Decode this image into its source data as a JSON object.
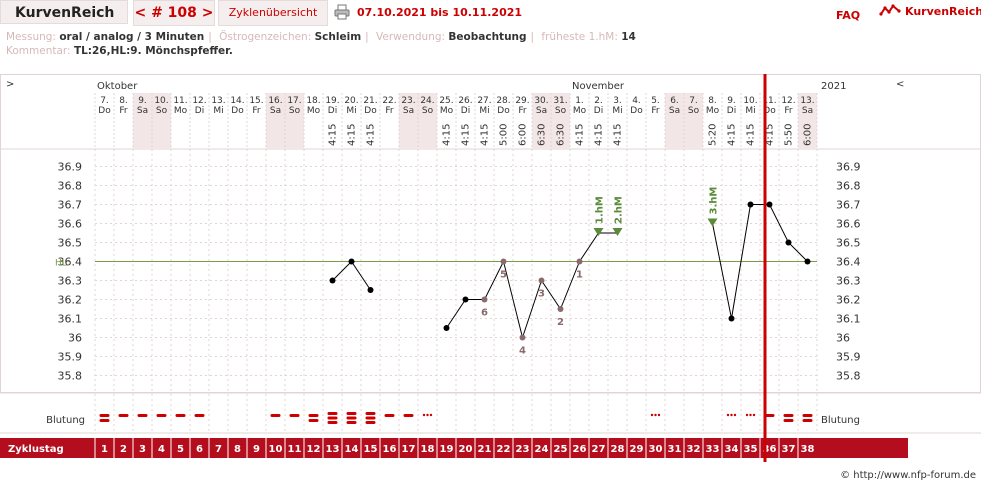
{
  "header": {
    "title": "KurvenReich",
    "cycle_label": "< # 108 >",
    "overview_label": "Zyklenübersicht",
    "date_range": "07.10.2021 bis 10.11.2021",
    "faq_label": "FAQ",
    "logo_text": "KurvenReich",
    "icons": {
      "print": "printer-icon",
      "logo": "logo-icon"
    }
  },
  "meta": {
    "messung_key": "Messung:",
    "messung_val": "oral / analog / 3 Minuten",
    "oestrogen_key": "Östrogenzeichen:",
    "oestrogen_val": "Schleim",
    "verwendung_key": "Verwendung:",
    "verwendung_val": "Beobachtung",
    "fruehest_key": "früheste 1.hM:",
    "fruehest_val": "14",
    "kommentar_key": "Kommentar:",
    "kommentar_val": "TL:26,HL:9. Mönchspfeffer."
  },
  "footer": "© http://www.nfp-forum.de",
  "colors": {
    "accent": "#cc0000",
    "band": "#b40e1e",
    "weekend": "#f3e6e6",
    "grid": "#e2d4d4",
    "line": "#000000",
    "marker": "#8b6a6e",
    "peak": "#5a8a3a",
    "hl": "#7a9a44"
  },
  "chart_data": {
    "type": "line",
    "nav_left": ">",
    "nav_right": "<",
    "months": [
      {
        "label": "Oktober",
        "day_index": 0
      },
      {
        "label": "November",
        "day_index": 25
      }
    ],
    "year_label": "2021",
    "dates": [
      "7.",
      "8.",
      "9.",
      "10.",
      "11.",
      "12.",
      "13.",
      "14.",
      "15.",
      "16.",
      "17.",
      "18.",
      "19.",
      "20.",
      "21.",
      "22.",
      "23.",
      "24.",
      "25.",
      "26.",
      "27.",
      "28.",
      "29.",
      "30.",
      "31.",
      "1.",
      "2.",
      "3.",
      "4.",
      "5.",
      "6.",
      "7.",
      "8.",
      "9.",
      "10.",
      "11.",
      "12.",
      "13."
    ],
    "weekdays": [
      "Do",
      "Fr",
      "Sa",
      "So",
      "Mo",
      "Di",
      "Mi",
      "Do",
      "Fr",
      "Sa",
      "So",
      "Mo",
      "Di",
      "Mi",
      "Do",
      "Fr",
      "Sa",
      "So",
      "Mo",
      "Di",
      "Mi",
      "Do",
      "Fr",
      "Sa",
      "So",
      "Mo",
      "Di",
      "Mi",
      "Do",
      "Fr",
      "Sa",
      "So",
      "Mo",
      "Di",
      "Mi",
      "Do",
      "Fr",
      "Sa"
    ],
    "times": [
      "",
      "",
      "",
      "",
      "",
      "",
      "",
      "",
      "",
      "",
      "",
      "",
      "4:15",
      "4:15",
      "4:15",
      "",
      "",
      "",
      "4:15",
      "4:15",
      "4:15",
      "5:00",
      "6:00",
      "6:30",
      "6:30",
      "4:15",
      "4:15",
      "4:15",
      "",
      "",
      "",
      "",
      "5:20",
      "4:15",
      "4:15",
      "4:15",
      "5:50",
      "6:00"
    ],
    "weekend_days": [
      3,
      4,
      10,
      11,
      17,
      18,
      24,
      25,
      31,
      32,
      38
    ],
    "cycle_days": [
      1,
      2,
      3,
      4,
      5,
      6,
      7,
      8,
      9,
      10,
      11,
      12,
      13,
      14,
      15,
      16,
      17,
      18,
      19,
      20,
      21,
      22,
      23,
      24,
      25,
      26,
      27,
      28,
      29,
      30,
      31,
      32,
      33,
      34,
      35,
      36,
      37,
      38
    ],
    "temperatures": [
      null,
      null,
      null,
      null,
      null,
      null,
      null,
      null,
      null,
      null,
      null,
      null,
      36.3,
      36.4,
      36.25,
      null,
      null,
      null,
      36.05,
      36.2,
      36.2,
      36.4,
      36.0,
      36.3,
      36.15,
      36.4,
      36.55,
      36.55,
      null,
      null,
      null,
      null,
      36.6,
      36.1,
      36.7,
      36.7,
      36.5,
      36.4
    ],
    "marked_points": [
      {
        "day": 21,
        "label": "6"
      },
      {
        "day": 22,
        "label": "5"
      },
      {
        "day": 23,
        "label": "4"
      },
      {
        "day": 24,
        "label": "3"
      },
      {
        "day": 25,
        "label": "2"
      },
      {
        "day": 26,
        "label": "1"
      }
    ],
    "peak_markers": [
      {
        "day": 27,
        "label": "1.hM"
      },
      {
        "day": 28,
        "label": "2.hM"
      },
      {
        "day": 33,
        "label": "3.hM"
      }
    ],
    "hl_label": "HL:",
    "hl_value": 36.4,
    "y_ticks": [
      "36.9",
      "36.8",
      "36.7",
      "36.6",
      "36.5",
      "36.4",
      "36.3",
      "36.2",
      "36.1",
      "36",
      "35.9",
      "35.8"
    ],
    "ylim": [
      35.75,
      36.95
    ],
    "grid": true,
    "cursor_after_day": 35,
    "bleeding_label": "Blutung",
    "bleeding": [
      2,
      1,
      1,
      1,
      1,
      1,
      0,
      0,
      0,
      1,
      1,
      2,
      3,
      3,
      3,
      1,
      1,
      4,
      0,
      0,
      0,
      0,
      0,
      0,
      0,
      0,
      0,
      0,
      0,
      4,
      0,
      0,
      0,
      4,
      4,
      1,
      2,
      2
    ],
    "cycle_label": "Zyklustag"
  }
}
